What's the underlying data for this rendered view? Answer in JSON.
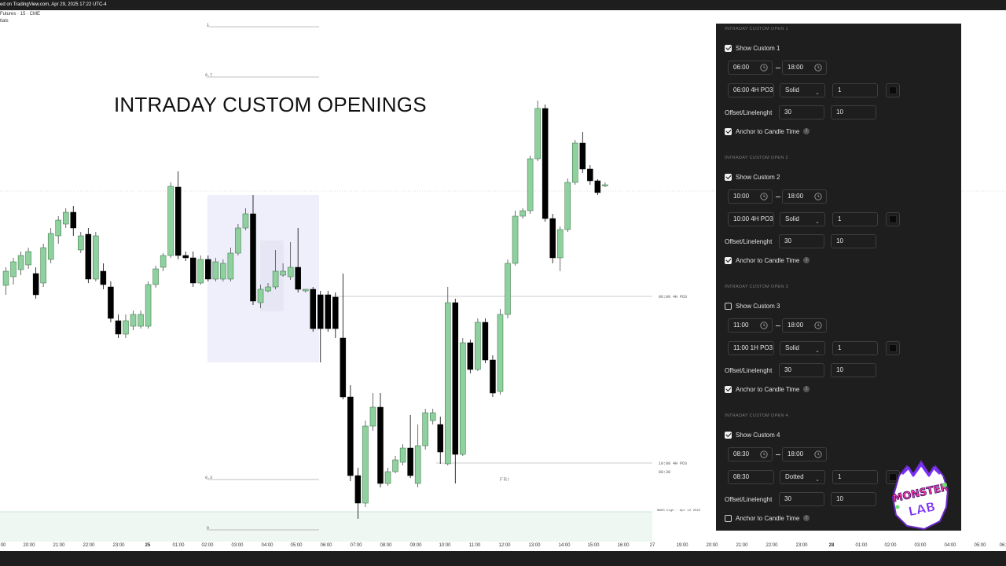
{
  "header": {
    "published": "ed on TradingView.com, Apr 29, 2025 17:22 UTC-4",
    "symbol": "Futures · 15 · CME",
    "symbol_line2": "tials"
  },
  "chart": {
    "headline": "INTRADAY CUSTOM OPENINGS",
    "fib_labels": [
      "1",
      "0.7",
      "0.3",
      "0"
    ],
    "level_labels": [
      "06:00 4H PO3",
      "10:00 4H PO3",
      "08:30",
      "NWOG high · Apr 12 2025"
    ],
    "day_label": "FRI",
    "x_axis": [
      {
        "label": "00",
        "bold": false
      },
      {
        "label": "20:00",
        "bold": false
      },
      {
        "label": "21:00",
        "bold": false
      },
      {
        "label": "22:00",
        "bold": false
      },
      {
        "label": "23:00",
        "bold": false
      },
      {
        "label": "25",
        "bold": true
      },
      {
        "label": "01:00",
        "bold": false
      },
      {
        "label": "02:00",
        "bold": false
      },
      {
        "label": "03:00",
        "bold": false
      },
      {
        "label": "04:00",
        "bold": false
      },
      {
        "label": "05:00",
        "bold": false
      },
      {
        "label": "06:00",
        "bold": false
      },
      {
        "label": "07:00",
        "bold": false
      },
      {
        "label": "08:00",
        "bold": false
      },
      {
        "label": "09:00",
        "bold": false
      },
      {
        "label": "10:00",
        "bold": false
      },
      {
        "label": "11:00",
        "bold": false
      },
      {
        "label": "12:00",
        "bold": false
      },
      {
        "label": "13:00",
        "bold": false
      },
      {
        "label": "14:00",
        "bold": false
      },
      {
        "label": "15:00",
        "bold": false
      },
      {
        "label": "16:00",
        "bold": false
      },
      {
        "label": "27",
        "bold": false
      },
      {
        "label": "19:00",
        "bold": false
      },
      {
        "label": "20:00",
        "bold": false
      },
      {
        "label": "21:00",
        "bold": false
      },
      {
        "label": "22:00",
        "bold": false
      },
      {
        "label": "23:00",
        "bold": false
      },
      {
        "label": "28",
        "bold": true
      },
      {
        "label": "01:00",
        "bold": false
      },
      {
        "label": "02:00",
        "bold": false
      },
      {
        "label": "03:00",
        "bold": false
      },
      {
        "label": "04:00",
        "bold": false
      },
      {
        "label": "05:00",
        "bold": false
      },
      {
        "label": "06:",
        "bold": false
      }
    ],
    "candles": [
      [
        363,
        345,
        375,
        340,
        "up"
      ],
      [
        352,
        333,
        362,
        328,
        "up"
      ],
      [
        343,
        325,
        350,
        320,
        "up"
      ],
      [
        337,
        320,
        342,
        315,
        "up"
      ],
      [
        375,
        348,
        380,
        340,
        "down"
      ],
      [
        360,
        315,
        365,
        310,
        "up"
      ],
      [
        330,
        297,
        335,
        290,
        "up"
      ],
      [
        300,
        280,
        310,
        275,
        "up"
      ],
      [
        285,
        270,
        290,
        265,
        "up"
      ],
      [
        270,
        290,
        300,
        262,
        "down"
      ],
      [
        318,
        300,
        322,
        295,
        "up"
      ],
      [
        298,
        355,
        360,
        290,
        "down"
      ],
      [
        355,
        300,
        358,
        295,
        "up"
      ],
      [
        345,
        362,
        368,
        335,
        "down"
      ],
      [
        365,
        405,
        410,
        358,
        "down"
      ],
      [
        408,
        425,
        430,
        400,
        "down"
      ],
      [
        425,
        408,
        430,
        400,
        "up"
      ],
      [
        415,
        400,
        420,
        395,
        "up"
      ],
      [
        415,
        400,
        418,
        395,
        "up"
      ],
      [
        415,
        362,
        418,
        358,
        "up"
      ],
      [
        362,
        342,
        366,
        338,
        "up"
      ],
      [
        340,
        325,
        345,
        322,
        "up"
      ],
      [
        325,
        237,
        328,
        232,
        "up"
      ],
      [
        238,
        325,
        330,
        218,
        "down"
      ],
      [
        325,
        328,
        332,
        320,
        "down"
      ],
      [
        328,
        360,
        365,
        320,
        "down"
      ],
      [
        360,
        330,
        362,
        325,
        "up"
      ],
      [
        330,
        355,
        358,
        325,
        "down"
      ],
      [
        355,
        333,
        358,
        328,
        "up"
      ],
      [
        355,
        335,
        358,
        330,
        "up"
      ],
      [
        355,
        322,
        358,
        315,
        "up"
      ],
      [
        322,
        290,
        325,
        285,
        "up"
      ],
      [
        290,
        272,
        293,
        265,
        "up"
      ],
      [
        272,
        383,
        388,
        248,
        "down"
      ],
      [
        385,
        368,
        392,
        362,
        "up"
      ],
      [
        370,
        365,
        372,
        360,
        "up"
      ],
      [
        365,
        345,
        368,
        318,
        "up"
      ],
      [
        345,
        350,
        352,
        335,
        "up"
      ],
      [
        352,
        340,
        356,
        308,
        "up"
      ],
      [
        340,
        368,
        372,
        290,
        "down"
      ],
      [
        368,
        370,
        372,
        368,
        "up"
      ],
      [
        368,
        418,
        422,
        365,
        "down"
      ],
      [
        375,
        418,
        461,
        370,
        "down"
      ],
      [
        375,
        418,
        422,
        370,
        "down"
      ],
      [
        378,
        418,
        430,
        372,
        "down"
      ],
      [
        430,
        505,
        508,
        348,
        "down"
      ],
      [
        505,
        605,
        612,
        490,
        "down"
      ],
      [
        605,
        640,
        660,
        595,
        "down"
      ],
      [
        640,
        542,
        645,
        535,
        "up"
      ],
      [
        542,
        518,
        548,
        500,
        "up"
      ],
      [
        518,
        615,
        620,
        500,
        "down"
      ],
      [
        615,
        600,
        618,
        595,
        "up"
      ],
      [
        600,
        585,
        602,
        580,
        "up"
      ],
      [
        588,
        570,
        592,
        565,
        "up"
      ],
      [
        570,
        605,
        608,
        528,
        "down"
      ],
      [
        615,
        567,
        620,
        540,
        "up"
      ],
      [
        567,
        525,
        572,
        520,
        "up"
      ],
      [
        525,
        535,
        540,
        520,
        "up"
      ],
      [
        540,
        575,
        590,
        530,
        "down"
      ],
      [
        590,
        385,
        592,
        365,
        "up"
      ],
      [
        385,
        578,
        615,
        380,
        "down"
      ],
      [
        578,
        436,
        580,
        430,
        "up"
      ],
      [
        436,
        470,
        475,
        432,
        "down"
      ],
      [
        470,
        410,
        472,
        405,
        "up"
      ],
      [
        410,
        458,
        462,
        405,
        "down"
      ],
      [
        458,
        500,
        505,
        452,
        "down"
      ],
      [
        498,
        400,
        502,
        393,
        "up"
      ],
      [
        400,
        335,
        405,
        330,
        "up"
      ],
      [
        335,
        275,
        338,
        268,
        "up"
      ],
      [
        275,
        268,
        278,
        265,
        "up"
      ],
      [
        268,
        202,
        272,
        198,
        "up"
      ],
      [
        202,
        138,
        205,
        128,
        "up"
      ],
      [
        138,
        278,
        282,
        133,
        "down"
      ],
      [
        278,
        328,
        335,
        272,
        "down"
      ],
      [
        328,
        292,
        345,
        288,
        "up"
      ],
      [
        292,
        232,
        295,
        227,
        "up"
      ],
      [
        232,
        182,
        235,
        178,
        "up"
      ],
      [
        182,
        215,
        220,
        168,
        "down"
      ],
      [
        215,
        230,
        235,
        210,
        "down"
      ],
      [
        230,
        245,
        248,
        228,
        "down"
      ],
      [
        235,
        235,
        238,
        232,
        "up"
      ]
    ],
    "candle_colors": {
      "up": "#8fd19e",
      "down": "#000000"
    }
  },
  "panel": {
    "sections": [
      {
        "title": "INTRADAY CUSTOM OPEN 1",
        "show_label": "Show Custom 1",
        "checked": true,
        "start": "06:00",
        "end": "18:00",
        "text": "06:00 4H PO3",
        "style": "Solid",
        "width": "1",
        "offset_label": "Offset/Linelenght",
        "offset": "30",
        "length": "10",
        "anchor_label": "Anchor to Candle Time",
        "anchor_checked": true
      },
      {
        "title": "INTRADAY CUSTOM OPEN 2",
        "show_label": "Show Custom 2",
        "checked": true,
        "start": "10:00",
        "end": "18:00",
        "text": "10:00 4H PO3",
        "style": "Solid",
        "width": "1",
        "offset_label": "Offset/Linelenght",
        "offset": "30",
        "length": "10",
        "anchor_label": "Anchor to Candle Time",
        "anchor_checked": true
      },
      {
        "title": "INTRADAY CUSTOM OPEN 3",
        "show_label": "Show Custom 3",
        "checked": false,
        "start": "11:00",
        "end": "18:00",
        "text": "11:00 1H PO3",
        "style": "Solid",
        "width": "1",
        "offset_label": "Offset/Linelenght",
        "offset": "30",
        "length": "10",
        "anchor_label": "Anchor to Candle Time",
        "anchor_checked": true
      },
      {
        "title": "INTRADAY CUSTOM OPEN 4",
        "show_label": "Show Custom 4",
        "checked": true,
        "start": "08:30",
        "end": "18:00",
        "text": "08:30",
        "style": "Dotted",
        "width": "1",
        "offset_label": "Offset/Linelenght",
        "offset": "30",
        "length": "10",
        "anchor_label": "Anchor to Candle Time",
        "anchor_checked": false
      }
    ],
    "info_glyph": "i"
  },
  "logo": {
    "text_top": "MONSTER",
    "text_bottom": "LAB",
    "colors": [
      "#7b2ff7",
      "#ff3da6",
      "#6de36d"
    ]
  }
}
